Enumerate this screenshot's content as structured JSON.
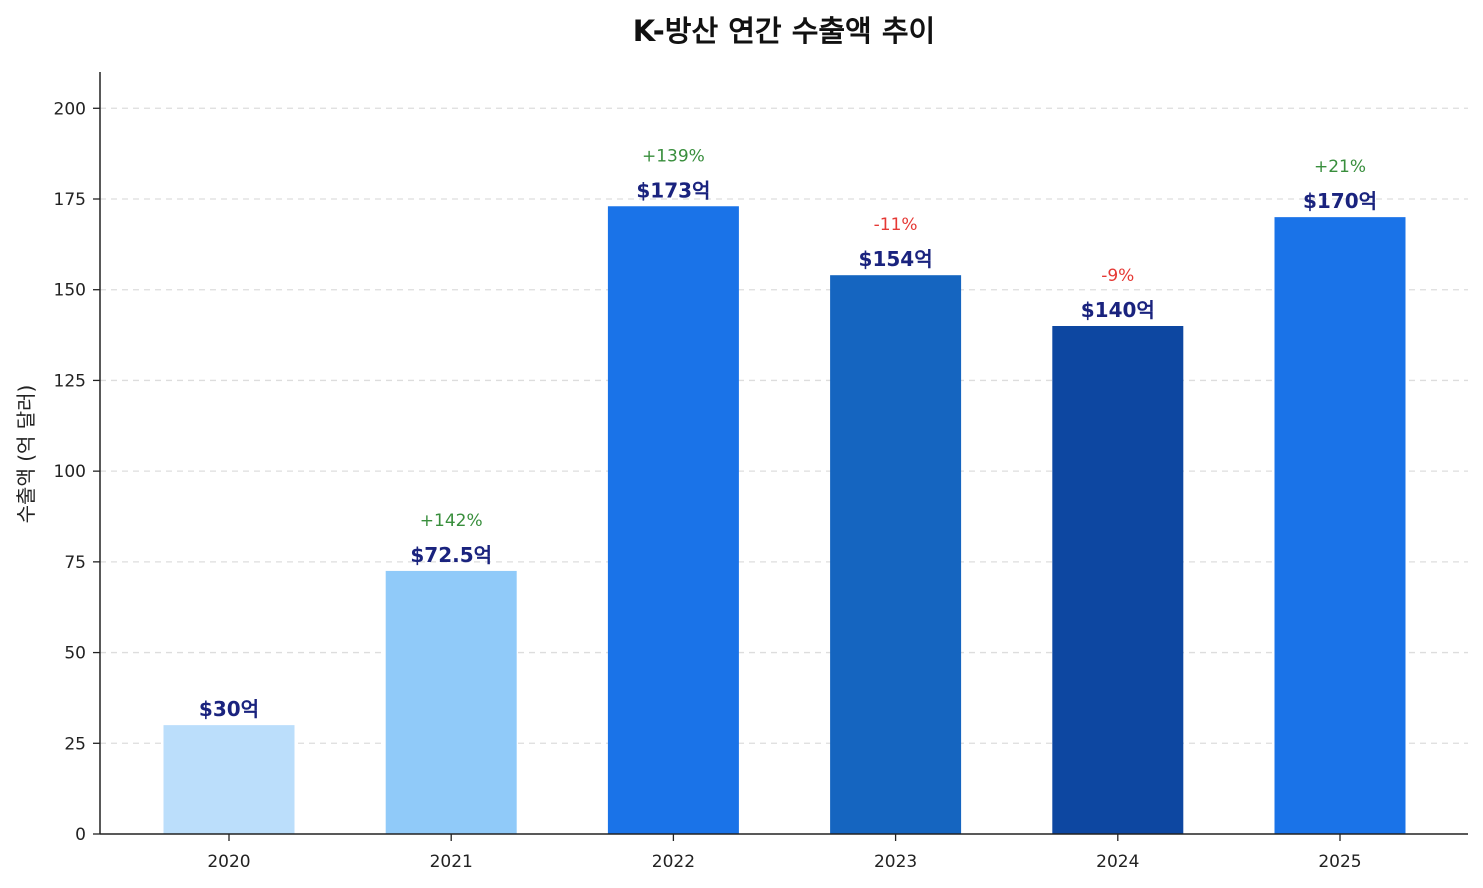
{
  "chart_data": {
    "type": "bar",
    "title": "K-방산 연간 수출액 추이",
    "xlabel": "",
    "ylabel": "수출액 (억 달러)",
    "categories": [
      "2020",
      "2021",
      "2022",
      "2023",
      "2024",
      "2025"
    ],
    "values": [
      30,
      72.5,
      173,
      154,
      140,
      170
    ],
    "value_labels": [
      "$30억",
      "$72.5억",
      "$173억",
      "$154억",
      "$140억",
      "$170억"
    ],
    "changes": [
      "",
      "+142%",
      "+139%",
      "-11%",
      "-9%",
      "+21%"
    ],
    "bar_colors": [
      "#bbdefb",
      "#90caf9",
      "#1a73e8",
      "#1565c0",
      "#0d47a1",
      "#1a73e8"
    ],
    "ylim": [
      0,
      210
    ],
    "yticks": [
      0,
      25,
      50,
      75,
      100,
      125,
      150,
      175,
      200
    ],
    "grid": true,
    "colors": {
      "value_label": "#1a237e",
      "increase": "#388e3c",
      "decrease": "#e53935",
      "axis": "#222222",
      "grid": "#dddddd",
      "text": "#222222"
    }
  }
}
